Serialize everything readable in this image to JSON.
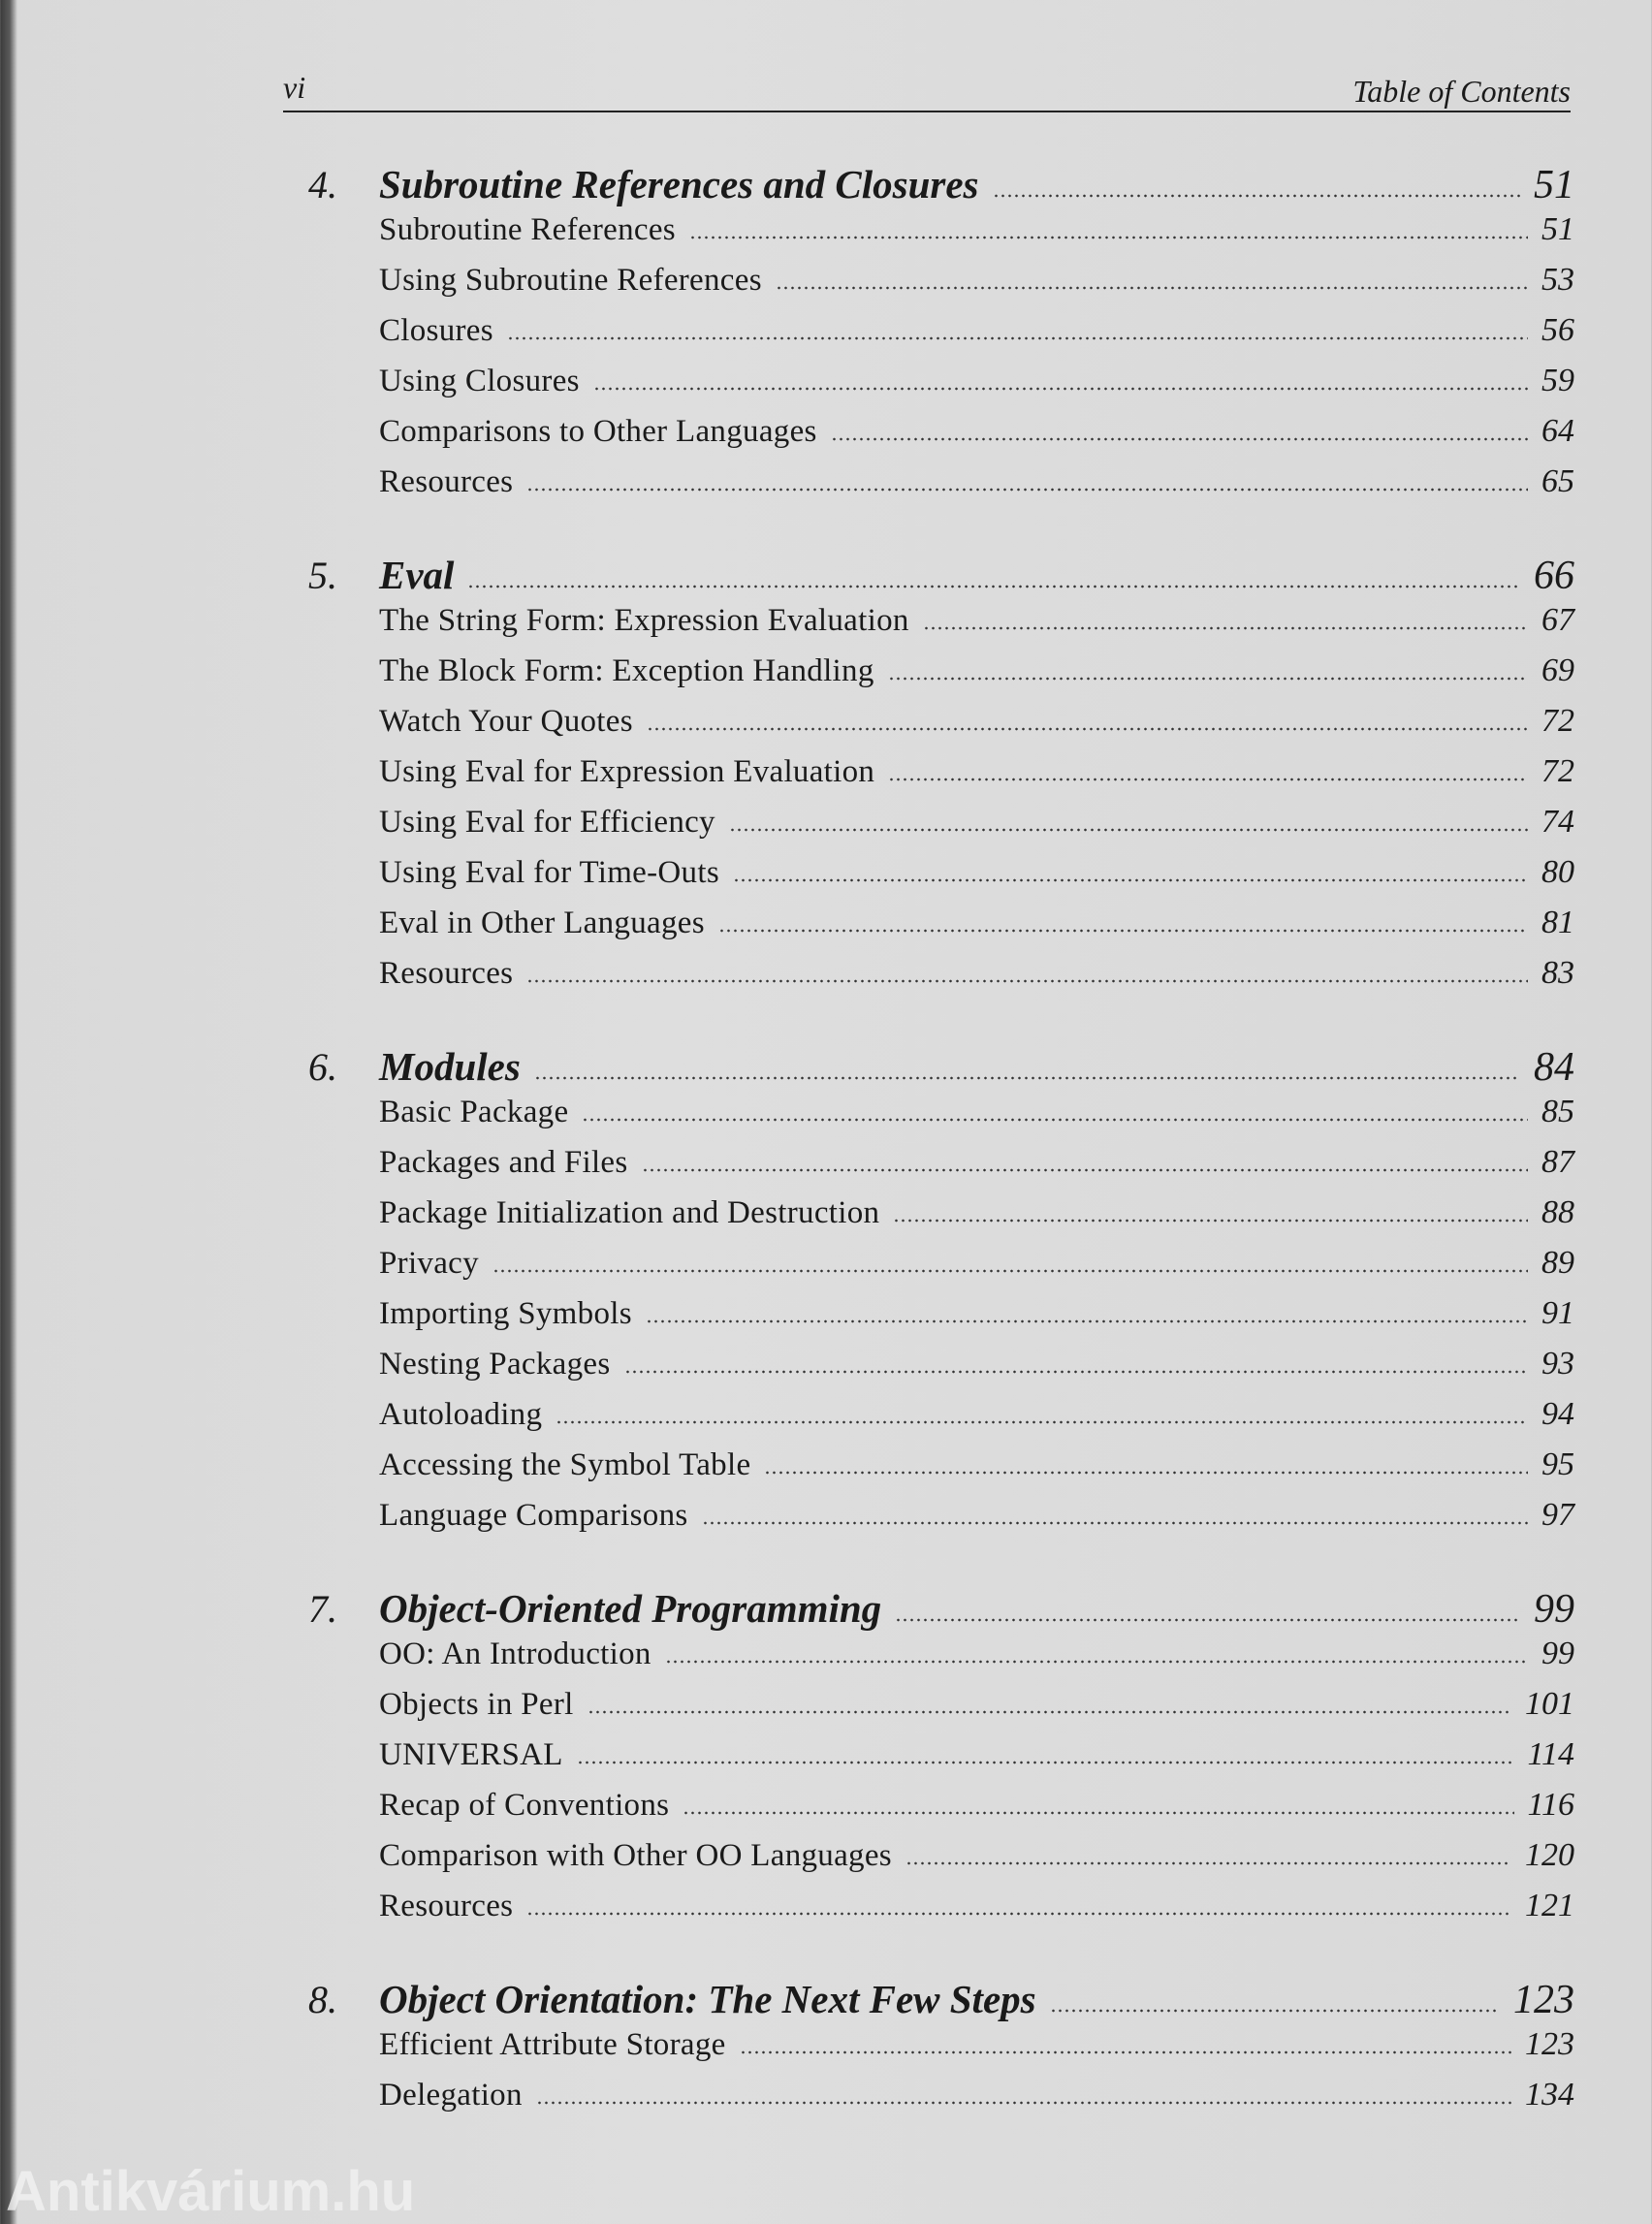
{
  "header": {
    "page_number": "vi",
    "running_title": "Table of Contents"
  },
  "chapters": [
    {
      "number": "4.",
      "title": "Subroutine References and Closures",
      "page": "51",
      "sections": [
        {
          "title": "Subroutine References",
          "page": "51"
        },
        {
          "title": "Using Subroutine References",
          "page": "53"
        },
        {
          "title": "Closures",
          "page": "56"
        },
        {
          "title": "Using Closures",
          "page": "59"
        },
        {
          "title": "Comparisons to Other Languages",
          "page": "64"
        },
        {
          "title": "Resources",
          "page": "65"
        }
      ]
    },
    {
      "number": "5.",
      "title": "Eval",
      "page": "66",
      "sections": [
        {
          "title": "The String Form: Expression Evaluation",
          "page": "67"
        },
        {
          "title": "The Block Form: Exception Handling",
          "page": "69"
        },
        {
          "title": "Watch Your Quotes",
          "page": "72"
        },
        {
          "title": "Using Eval for Expression Evaluation",
          "page": "72"
        },
        {
          "title": "Using Eval for Efficiency",
          "page": "74"
        },
        {
          "title": "Using Eval for Time-Outs",
          "page": "80"
        },
        {
          "title": "Eval in Other Languages",
          "page": "81"
        },
        {
          "title": "Resources",
          "page": "83"
        }
      ]
    },
    {
      "number": "6.",
      "title": "Modules",
      "page": "84",
      "sections": [
        {
          "title": "Basic Package",
          "page": "85"
        },
        {
          "title": "Packages and Files",
          "page": "87"
        },
        {
          "title": "Package Initialization and Destruction",
          "page": "88"
        },
        {
          "title": "Privacy",
          "page": "89"
        },
        {
          "title": "Importing Symbols",
          "page": "91"
        },
        {
          "title": "Nesting Packages",
          "page": "93"
        },
        {
          "title": "Autoloading",
          "page": "94"
        },
        {
          "title": "Accessing the Symbol Table",
          "page": "95"
        },
        {
          "title": "Language Comparisons",
          "page": "97"
        }
      ]
    },
    {
      "number": "7.",
      "title": "Object-Oriented Programming",
      "page": "99",
      "sections": [
        {
          "title": "OO: An Introduction",
          "page": "99"
        },
        {
          "title": "Objects in Perl",
          "page": "101"
        },
        {
          "title": "UNIVERSAL",
          "page": "114"
        },
        {
          "title": "Recap of Conventions",
          "page": "116"
        },
        {
          "title": "Comparison with Other OO Languages",
          "page": "120"
        },
        {
          "title": "Resources",
          "page": "121"
        }
      ]
    },
    {
      "number": "8.",
      "title": "Object Orientation: The Next Few Steps",
      "page": "123",
      "sections": [
        {
          "title": "Efficient Attribute Storage",
          "page": "123"
        },
        {
          "title": "Delegation",
          "page": "134"
        }
      ]
    }
  ],
  "watermark": "Antikvárium.hu"
}
